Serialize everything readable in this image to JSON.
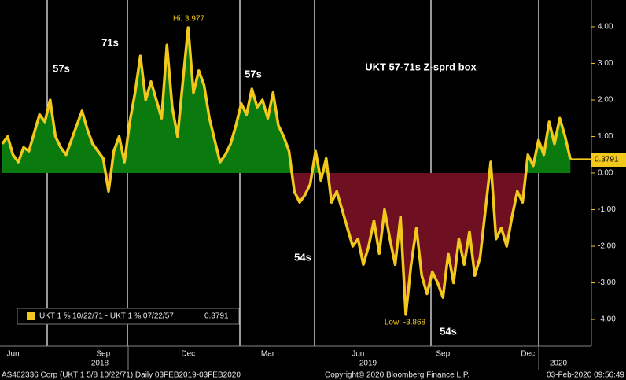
{
  "chart_data": {
    "type": "line",
    "title": "UKT 57-71s Z-sprd box",
    "categories": [
      null,
      null,
      "Jun",
      null,
      null,
      null,
      null,
      null,
      null,
      null,
      null,
      null,
      null,
      null,
      null,
      null,
      null,
      null,
      null,
      "Sep",
      null,
      null,
      null,
      null,
      null,
      null,
      null,
      null,
      null,
      null,
      null,
      null,
      null,
      null,
      null,
      "Dec",
      null,
      null,
      null,
      null,
      null,
      null,
      null,
      null,
      null,
      null,
      null,
      null,
      null,
      null,
      "Mar",
      null,
      null,
      null,
      null,
      null,
      null,
      null,
      null,
      null,
      null,
      null,
      null,
      null,
      null,
      null,
      null,
      "Jun",
      null,
      null,
      null,
      null,
      null,
      null,
      null,
      null,
      null,
      null,
      null,
      null,
      null,
      null,
      null,
      "Sep",
      null,
      null,
      null,
      null,
      null,
      null,
      null,
      null,
      null,
      null,
      null,
      null,
      null,
      null,
      null,
      "Dec",
      null,
      null,
      null,
      null,
      null,
      null,
      null,
      null
    ],
    "years": [
      "2018",
      "2019",
      "2020"
    ],
    "series": [
      {
        "name": "UKT 1 ⅝ 10/22/71 - UKT 1 ⅜ 07/22/57",
        "color": "#f2c81c",
        "values": [
          0.8,
          1.0,
          0.5,
          0.3,
          0.7,
          0.6,
          1.1,
          1.6,
          1.4,
          2.0,
          1.0,
          0.7,
          0.5,
          0.9,
          1.3,
          1.7,
          1.2,
          0.8,
          0.6,
          0.4,
          -0.5,
          0.6,
          1.0,
          0.3,
          1.4,
          2.2,
          3.2,
          2.0,
          2.5,
          2.0,
          1.5,
          3.5,
          1.8,
          1.0,
          2.5,
          3.977,
          2.2,
          2.8,
          2.4,
          1.5,
          0.9,
          0.3,
          0.5,
          0.8,
          1.3,
          1.9,
          1.6,
          2.3,
          1.8,
          2.0,
          1.5,
          2.2,
          1.3,
          1.0,
          0.6,
          -0.5,
          -0.8,
          -0.6,
          -0.3,
          0.6,
          -0.2,
          0.4,
          -0.8,
          -0.5,
          -1.0,
          -1.5,
          -2.0,
          -1.8,
          -2.5,
          -2.0,
          -1.3,
          -2.2,
          -1.0,
          -1.8,
          -2.5,
          -1.2,
          -3.868,
          -2.5,
          -1.5,
          -2.8,
          -3.3,
          -2.7,
          -3.0,
          -3.4,
          -2.2,
          -3.0,
          -1.8,
          -2.5,
          -1.6,
          -2.8,
          -2.3,
          -1.0,
          0.3,
          -1.8,
          -1.5,
          -2.0,
          -1.2,
          -0.5,
          -0.8,
          0.5,
          0.2,
          0.9,
          0.5,
          1.4,
          0.8,
          1.5,
          1.0,
          0.3791
        ]
      }
    ],
    "positive_color": "#0b7a0e",
    "negative_color": "#6e1022",
    "ylim": [
      -4.73,
      4.73
    ],
    "yticks": [
      {
        "value": 4,
        "label": "4.00"
      },
      {
        "value": 3,
        "label": "3.00"
      },
      {
        "value": 2,
        "label": "2.00"
      },
      {
        "value": 1,
        "label": "1.00"
      },
      {
        "value": 0,
        "label": "0.00"
      },
      {
        "value": -1,
        "label": "-1.00"
      },
      {
        "value": -2,
        "label": "-2.00"
      },
      {
        "value": -3,
        "label": "-3.00"
      },
      {
        "value": -4,
        "label": "-4.00"
      }
    ],
    "annotations": [
      "57s",
      "71s",
      "57s",
      "54s",
      "54s"
    ],
    "hi_label": "Hi: 3.977",
    "low_label": "Low: -3.868",
    "last_value_label": "0.3791",
    "legend_value": "0.3791",
    "footer": {
      "left": "AS462336 Corp (UKT 1 5/8 10/22/71)  Daily 03FEB2019-03FEB2020",
      "center": "Copyright© 2020 Bloomberg Finance L.P.",
      "right": "03-Feb-2020 09:56:49"
    }
  }
}
